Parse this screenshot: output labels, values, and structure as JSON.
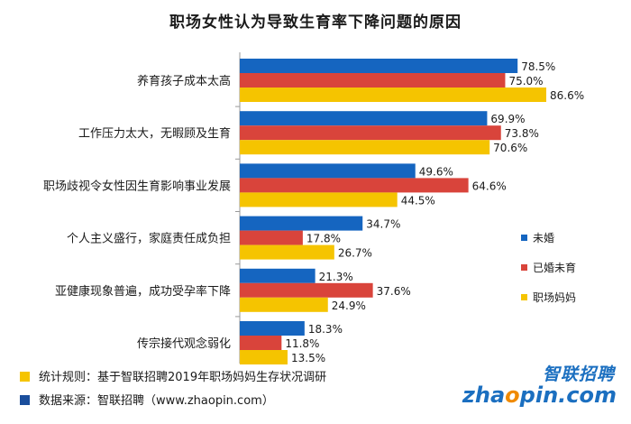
{
  "title": "职场女性认为导致生育率下降问题的原因",
  "legend": [
    {
      "label": "未婚",
      "color": "#1565c0"
    },
    {
      "label": "已婚未育",
      "color": "#d9443b"
    },
    {
      "label": "职场妈妈",
      "color": "#f5c400"
    }
  ],
  "notes": {
    "stat_rule": "统计规则：基于智联招聘2019年职场妈妈生存状况调研",
    "stat_rule_color": "#f5c400",
    "data_source": "数据来源：智联招聘（www.zhaopin.com）",
    "data_source_color": "#1a4e9c"
  },
  "logo": {
    "cn": "智联招聘",
    "en_prefix": "zha",
    "en_dot": "o",
    "en_suffix": "pin.com"
  },
  "chart_data": {
    "type": "bar",
    "orientation": "horizontal",
    "categories": [
      "养育孩子成本太高",
      "工作压力太大，无暇顾及生育",
      "职场歧视令女性因生育影响事业发展",
      "个人主义盛行，家庭责任成负担",
      "亚健康现象普遍，成功受孕率下降",
      "传宗接代观念弱化"
    ],
    "series": [
      {
        "name": "未婚",
        "color": "#1565c0",
        "values": [
          78.5,
          69.9,
          49.6,
          34.7,
          21.3,
          18.3
        ]
      },
      {
        "name": "已婚未育",
        "color": "#d9443b",
        "values": [
          75.0,
          73.8,
          64.6,
          17.8,
          37.6,
          11.8
        ]
      },
      {
        "name": "职场妈妈",
        "color": "#f5c400",
        "values": [
          86.6,
          70.6,
          44.5,
          26.7,
          24.9,
          13.5
        ]
      }
    ],
    "value_suffix": "%",
    "xlim": [
      0,
      100
    ],
    "grid": false,
    "legend_position": "right"
  }
}
